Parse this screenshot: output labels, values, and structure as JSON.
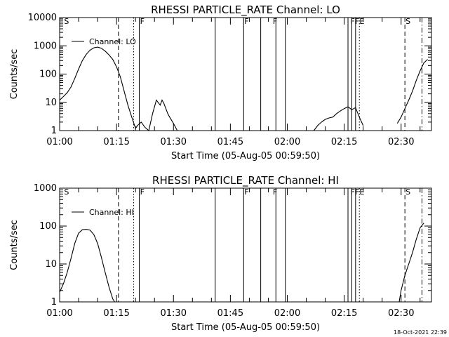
{
  "footer": {
    "timestamp": "18-Oct-2021 22:39"
  },
  "chart_data": [
    {
      "type": "line",
      "title": "RHESSI PARTICLE_RATE Channel: LO",
      "xlabel": "Start Time (05-Aug-05 00:59:50)",
      "ylabel": "Counts/sec",
      "xlim": [
        0,
        98
      ],
      "ylim": [
        1,
        10000
      ],
      "y_scale": "log",
      "x_ticks": [
        {
          "v": 0,
          "label": "01:00"
        },
        {
          "v": 15,
          "label": "01:15"
        },
        {
          "v": 30,
          "label": "01:30"
        },
        {
          "v": 45,
          "label": "01:45"
        },
        {
          "v": 60,
          "label": "02:00"
        },
        {
          "v": 75,
          "label": "02:15"
        },
        {
          "v": 90,
          "label": "02:30"
        }
      ],
      "y_ticks": [
        {
          "v": 1,
          "label": "1"
        },
        {
          "v": 10,
          "label": "10"
        },
        {
          "v": 100,
          "label": "100"
        },
        {
          "v": 1000,
          "label": "1000"
        },
        {
          "v": 10000,
          "label": "10000"
        }
      ],
      "legend": {
        "label": "Channel: LO",
        "placement": "top-left"
      },
      "series": [
        {
          "name": "Channel: LO",
          "segments": [
            [
              [
                0,
                12
              ],
              [
                1,
                16
              ],
              [
                2,
                22
              ],
              [
                3,
                35
              ],
              [
                4,
                70
              ],
              [
                5,
                150
              ],
              [
                6,
                300
              ],
              [
                7,
                500
              ],
              [
                8,
                700
              ],
              [
                9,
                850
              ],
              [
                10,
                900
              ],
              [
                11,
                820
              ],
              [
                12,
                650
              ],
              [
                13,
                480
              ],
              [
                14,
                330
              ],
              [
                15,
                180
              ],
              [
                16,
                80
              ],
              [
                17,
                25
              ],
              [
                18,
                8
              ],
              [
                19,
                3
              ],
              [
                20,
                1.2
              ],
              [
                20.5,
                1.5
              ],
              [
                21.5,
                2
              ],
              [
                22.5,
                1.3
              ],
              [
                23.5,
                1
              ],
              [
                24.5,
                4
              ],
              [
                25.5,
                12
              ],
              [
                26.5,
                8
              ],
              [
                27,
                12
              ],
              [
                27.5,
                9
              ],
              [
                28,
                6
              ],
              [
                28.5,
                4
              ],
              [
                29,
                3
              ],
              [
                30,
                1.8
              ],
              [
                31,
                1
              ]
            ],
            [
              [
                67,
                1
              ],
              [
                68,
                1.5
              ],
              [
                69,
                2
              ],
              [
                70,
                2.5
              ],
              [
                71,
                2.8
              ],
              [
                72,
                3
              ],
              [
                73,
                4
              ],
              [
                74,
                5
              ],
              [
                75,
                6
              ],
              [
                76,
                7
              ],
              [
                77,
                5.5
              ],
              [
                78,
                6.5
              ],
              [
                79,
                3
              ],
              [
                80,
                1.5
              ]
            ],
            [
              [
                89,
                1.8
              ],
              [
                90,
                3
              ],
              [
                91,
                6
              ],
              [
                92,
                12
              ],
              [
                93,
                25
              ],
              [
                94,
                60
              ],
              [
                95,
                130
              ],
              [
                96,
                250
              ],
              [
                97,
                330
              ]
            ]
          ]
        }
      ],
      "annotations": [
        {
          "x": 1,
          "text": "S"
        },
        {
          "x": 21,
          "text": "F"
        },
        {
          "x": 48.5,
          "text": "F"
        },
        {
          "x": 56,
          "text": "F"
        },
        {
          "x": 76.5,
          "text": "FFE"
        },
        {
          "x": 91,
          "text": "S"
        }
      ],
      "vlines": [
        {
          "x": 15.5,
          "style": "dashed"
        },
        {
          "x": 19.5,
          "style": "dotted"
        },
        {
          "x": 21,
          "style": "solid"
        },
        {
          "x": 41,
          "style": "solid"
        },
        {
          "x": 48.5,
          "style": "solid"
        },
        {
          "x": 53,
          "style": "solid"
        },
        {
          "x": 57,
          "style": "solid"
        },
        {
          "x": 59.5,
          "style": "solid"
        },
        {
          "x": 76,
          "style": "solid"
        },
        {
          "x": 77,
          "style": "solid"
        },
        {
          "x": 78,
          "style": "solid"
        },
        {
          "x": 79,
          "style": "dotted"
        },
        {
          "x": 91,
          "style": "dashed"
        },
        {
          "x": 95.5,
          "style": "dashdot"
        }
      ]
    },
    {
      "type": "line",
      "title": "RHESSI PARTICLE_RATE Channel: HI",
      "xlabel": "Start Time (05-Aug-05 00:59:50)",
      "ylabel": "Counts/sec",
      "xlim": [
        0,
        98
      ],
      "ylim": [
        1,
        1000
      ],
      "y_scale": "log",
      "x_ticks": [
        {
          "v": 0,
          "label": "01:00"
        },
        {
          "v": 15,
          "label": "01:15"
        },
        {
          "v": 30,
          "label": "01:30"
        },
        {
          "v": 45,
          "label": "01:45"
        },
        {
          "v": 60,
          "label": "02:00"
        },
        {
          "v": 75,
          "label": "02:15"
        },
        {
          "v": 90,
          "label": "02:30"
        }
      ],
      "y_ticks": [
        {
          "v": 1,
          "label": "1"
        },
        {
          "v": 10,
          "label": "10"
        },
        {
          "v": 100,
          "label": "100"
        },
        {
          "v": 1000,
          "label": "1000"
        }
      ],
      "legend": {
        "label": "Channel: HI",
        "placement": "top-left"
      },
      "series": [
        {
          "name": "Channel: HI",
          "segments": [
            [
              [
                0,
                1.8
              ],
              [
                1,
                3
              ],
              [
                2,
                6
              ],
              [
                3,
                14
              ],
              [
                4,
                35
              ],
              [
                5,
                65
              ],
              [
                6,
                80
              ],
              [
                7,
                82
              ],
              [
                8,
                78
              ],
              [
                9,
                60
              ],
              [
                10,
                35
              ],
              [
                11,
                15
              ],
              [
                12,
                6
              ],
              [
                13,
                2.5
              ],
              [
                14,
                1.2
              ],
              [
                14.5,
                1
              ]
            ],
            [
              [
                89.5,
                1
              ],
              [
                90,
                2
              ],
              [
                91,
                5
              ],
              [
                92,
                10
              ],
              [
                93,
                20
              ],
              [
                94,
                45
              ],
              [
                95,
                90
              ],
              [
                96,
                120
              ]
            ]
          ]
        }
      ],
      "annotations": [
        {
          "x": 1,
          "text": "S"
        },
        {
          "x": 21,
          "text": "F"
        },
        {
          "x": 48.5,
          "text": "F"
        },
        {
          "x": 56,
          "text": "F"
        },
        {
          "x": 76.5,
          "text": "FFE"
        },
        {
          "x": 91,
          "text": "S"
        }
      ],
      "vlines": [
        {
          "x": 15.5,
          "style": "dashed"
        },
        {
          "x": 19.5,
          "style": "dotted"
        },
        {
          "x": 21,
          "style": "solid"
        },
        {
          "x": 41,
          "style": "solid"
        },
        {
          "x": 48.5,
          "style": "solid"
        },
        {
          "x": 53,
          "style": "solid"
        },
        {
          "x": 57,
          "style": "solid"
        },
        {
          "x": 59.5,
          "style": "solid"
        },
        {
          "x": 76,
          "style": "solid"
        },
        {
          "x": 77,
          "style": "solid"
        },
        {
          "x": 78,
          "style": "solid"
        },
        {
          "x": 79,
          "style": "dotted"
        },
        {
          "x": 91,
          "style": "dashed"
        },
        {
          "x": 95.5,
          "style": "dashdot"
        }
      ]
    }
  ]
}
